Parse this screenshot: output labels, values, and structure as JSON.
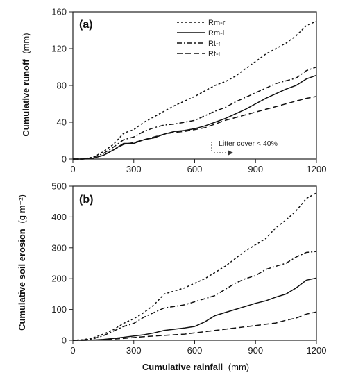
{
  "chart_data": [
    {
      "type": "line",
      "panel": "(a)",
      "ylabel_main": "Cumulative runoff",
      "ylabel_unit": "(mm)",
      "xlim": [
        0,
        1200
      ],
      "ylim": [
        0,
        160
      ],
      "xticks": [
        0,
        300,
        600,
        900,
        1200
      ],
      "yticks": [
        0,
        40,
        80,
        120,
        160
      ],
      "legend_position": "top-right",
      "annotation": "Litter cover < 40%",
      "series": [
        {
          "name": "Rm-r",
          "dash": "3,3",
          "x": [
            0,
            50,
            100,
            150,
            200,
            250,
            300,
            350,
            400,
            450,
            500,
            550,
            600,
            650,
            700,
            750,
            800,
            850,
            900,
            950,
            1000,
            1050,
            1100,
            1150,
            1200
          ],
          "y": [
            0,
            0,
            2,
            8,
            16,
            28,
            32,
            40,
            46,
            52,
            58,
            63,
            68,
            74,
            80,
            84,
            90,
            98,
            106,
            114,
            120,
            126,
            134,
            145,
            150
          ]
        },
        {
          "name": "Rm-i",
          "dash": "",
          "x": [
            0,
            50,
            100,
            150,
            200,
            250,
            300,
            350,
            400,
            450,
            500,
            550,
            600,
            650,
            700,
            750,
            800,
            850,
            900,
            950,
            1000,
            1050,
            1100,
            1150,
            1200
          ],
          "y": [
            0,
            0,
            1,
            4,
            10,
            17,
            17,
            21,
            23,
            27,
            30,
            31,
            33,
            36,
            40,
            44,
            49,
            54,
            60,
            66,
            71,
            76,
            80,
            87,
            91
          ]
        },
        {
          "name": "Rt-r",
          "dash": "7,3,2,3",
          "x": [
            0,
            50,
            100,
            150,
            200,
            250,
            300,
            350,
            400,
            450,
            500,
            550,
            600,
            650,
            700,
            750,
            800,
            850,
            900,
            950,
            1000,
            1050,
            1100,
            1150,
            1200
          ],
          "y": [
            0,
            0,
            2,
            6,
            13,
            21,
            24,
            30,
            34,
            37,
            38,
            40,
            42,
            47,
            52,
            56,
            62,
            67,
            72,
            77,
            82,
            85,
            88,
            96,
            100
          ]
        },
        {
          "name": "Rt-i",
          "dash": "8,4",
          "x": [
            0,
            50,
            100,
            150,
            200,
            250,
            300,
            350,
            400,
            450,
            500,
            550,
            600,
            650,
            700,
            750,
            800,
            850,
            900,
            950,
            1000,
            1050,
            1100,
            1150,
            1200
          ],
          "y": [
            0,
            0,
            1,
            4,
            10,
            16,
            18,
            21,
            24,
            27,
            29,
            30,
            32,
            34,
            38,
            42,
            45,
            48,
            51,
            54,
            57,
            60,
            63,
            66,
            68
          ]
        }
      ]
    },
    {
      "type": "line",
      "panel": "(b)",
      "ylabel_main": "Cumulative soil erosion",
      "ylabel_unit": "(g m⁻²)",
      "xlabel_main": "Cumulative rainfall",
      "xlabel_unit": "(mm)",
      "xlim": [
        0,
        1200
      ],
      "ylim": [
        0,
        500
      ],
      "xticks": [
        0,
        300,
        600,
        900,
        1200
      ],
      "yticks": [
        0,
        100,
        200,
        300,
        400,
        500
      ],
      "series": [
        {
          "name": "Rm-r",
          "dash": "3,3",
          "x": [
            0,
            50,
            100,
            150,
            200,
            250,
            300,
            350,
            400,
            450,
            500,
            550,
            600,
            650,
            700,
            750,
            800,
            850,
            900,
            950,
            1000,
            1050,
            1100,
            1150,
            1200
          ],
          "y": [
            0,
            2,
            8,
            20,
            35,
            55,
            70,
            90,
            115,
            150,
            160,
            170,
            185,
            200,
            220,
            240,
            265,
            290,
            310,
            330,
            365,
            390,
            420,
            460,
            478
          ]
        },
        {
          "name": "Rm-i",
          "dash": "",
          "x": [
            0,
            50,
            100,
            150,
            200,
            250,
            300,
            350,
            400,
            450,
            500,
            550,
            600,
            650,
            700,
            750,
            800,
            850,
            900,
            950,
            1000,
            1050,
            1100,
            1150,
            1200
          ],
          "y": [
            0,
            0,
            1,
            3,
            6,
            10,
            14,
            18,
            24,
            32,
            36,
            40,
            45,
            60,
            80,
            90,
            100,
            110,
            120,
            128,
            140,
            150,
            170,
            195,
            202
          ]
        },
        {
          "name": "Rt-r",
          "dash": "7,3,2,3",
          "x": [
            0,
            50,
            100,
            150,
            200,
            250,
            300,
            350,
            400,
            450,
            500,
            550,
            600,
            650,
            700,
            750,
            800,
            850,
            900,
            950,
            1000,
            1050,
            1100,
            1150,
            1200
          ],
          "y": [
            0,
            1,
            5,
            15,
            30,
            45,
            55,
            75,
            90,
            105,
            110,
            115,
            125,
            135,
            145,
            165,
            185,
            200,
            210,
            230,
            240,
            250,
            270,
            285,
            288
          ]
        },
        {
          "name": "Rt-i",
          "dash": "8,4",
          "x": [
            0,
            50,
            100,
            150,
            200,
            250,
            300,
            350,
            400,
            450,
            500,
            550,
            600,
            650,
            700,
            750,
            800,
            850,
            900,
            950,
            1000,
            1050,
            1100,
            1150,
            1200
          ],
          "y": [
            0,
            0,
            1,
            2,
            4,
            6,
            9,
            12,
            14,
            16,
            18,
            20,
            24,
            28,
            32,
            36,
            40,
            44,
            48,
            52,
            56,
            65,
            72,
            85,
            92
          ]
        }
      ]
    }
  ]
}
